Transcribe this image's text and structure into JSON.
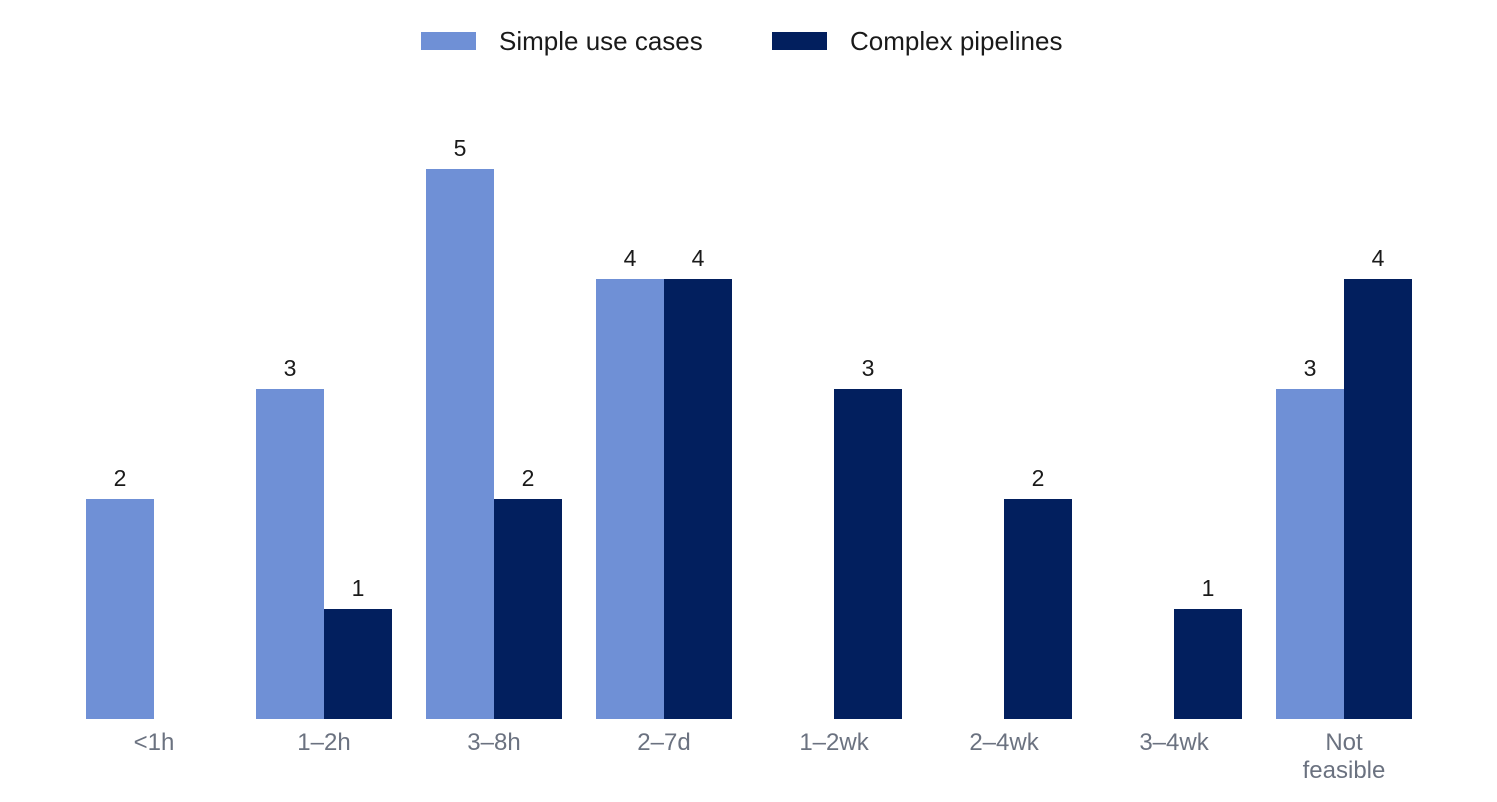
{
  "chart_data": {
    "type": "bar",
    "title": "",
    "xlabel": "",
    "ylabel": "",
    "categories": [
      "<1h",
      "1–2h",
      "3–8h",
      "2–7d",
      "1–2wk",
      "2–4wk",
      "3–4wk",
      "Not\nfeasible"
    ],
    "series": [
      {
        "name": "Simple use cases",
        "color": "#6f90d6",
        "values": [
          2,
          3,
          5,
          4,
          0,
          0,
          0,
          3
        ]
      },
      {
        "name": "Complex pipelines",
        "color": "#021f5e",
        "values": [
          0,
          1,
          2,
          4,
          3,
          2,
          1,
          4
        ]
      }
    ],
    "ylim": [
      0,
      5
    ],
    "grid": false,
    "legend_position": "top-center",
    "show_zero_labels": false
  }
}
